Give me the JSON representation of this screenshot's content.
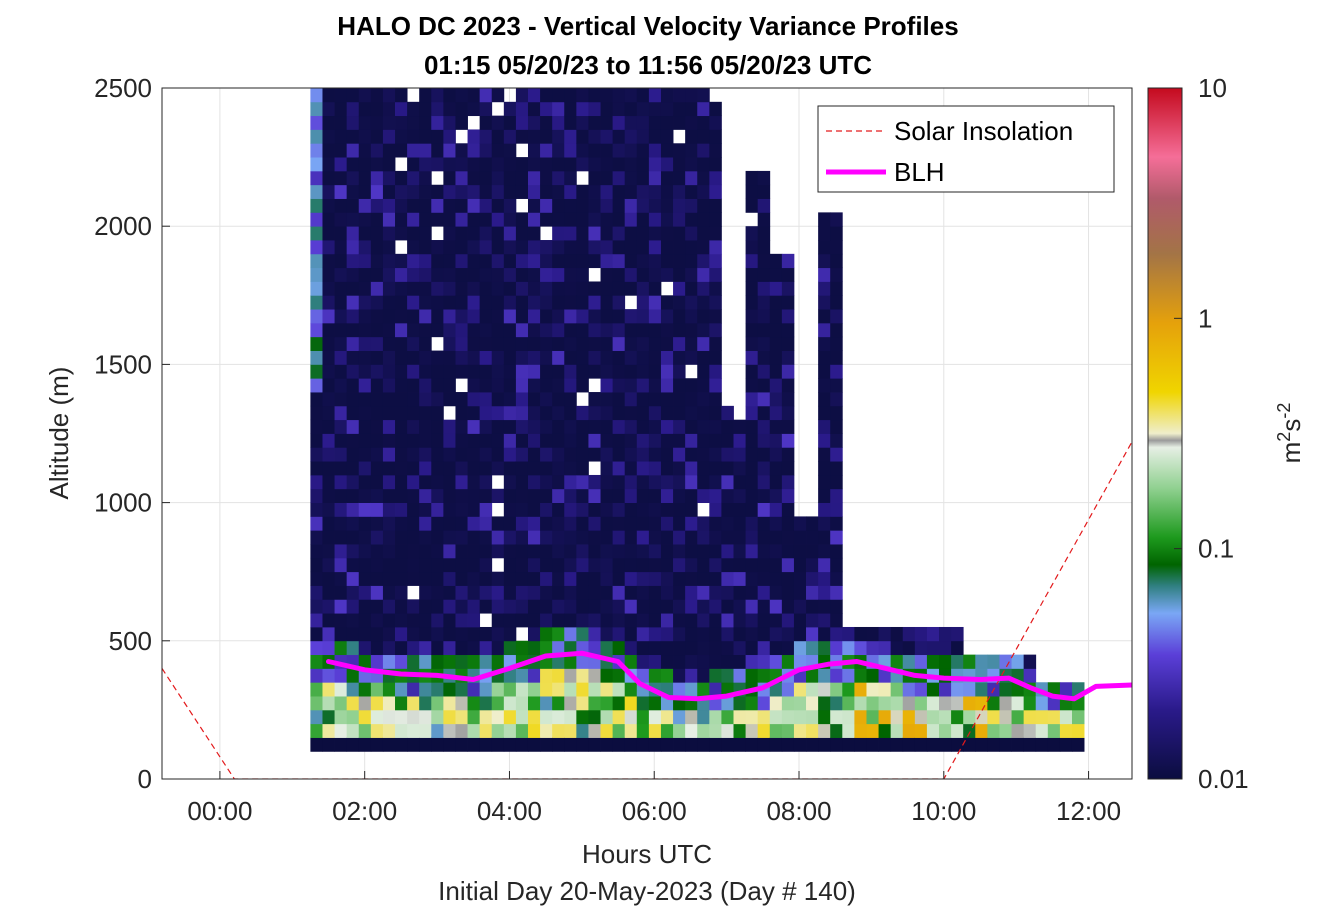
{
  "chart_data": {
    "type": "heatmap",
    "title": "HALO DC 2023 - Vertical Velocity Variance Profiles",
    "subtitle": "01:15 05/20/23 to 11:56 05/20/23  UTC",
    "xlabel": "Hours UTC",
    "xlabel2": "Initial Day 20-May-2023 (Day # 140)",
    "ylabel": "Altitude (m)",
    "xlim_hours": [
      -0.8,
      12.6
    ],
    "ylim": [
      0,
      2500
    ],
    "x_ticks": [
      {
        "value": 0,
        "label": "00:00"
      },
      {
        "value": 2,
        "label": "02:00"
      },
      {
        "value": 4,
        "label": "04:00"
      },
      {
        "value": 6,
        "label": "06:00"
      },
      {
        "value": 8,
        "label": "08:00"
      },
      {
        "value": 10,
        "label": "10:00"
      },
      {
        "value": 12,
        "label": "12:00"
      }
    ],
    "y_ticks": [
      {
        "value": 0,
        "label": "0"
      },
      {
        "value": 500,
        "label": "500"
      },
      {
        "value": 1000,
        "label": "1000"
      },
      {
        "value": 1500,
        "label": "1500"
      },
      {
        "value": 2000,
        "label": "2000"
      },
      {
        "value": 2500,
        "label": "2500"
      }
    ],
    "grid": true,
    "legend_position": "top-right",
    "legend": [
      {
        "name": "Solar Insolation",
        "style": "dashed",
        "color": "#e31a1c"
      },
      {
        "name": "BLH",
        "style": "solid",
        "color": "#ff00ff"
      }
    ],
    "colorbar": {
      "label_base": "m",
      "label_sup1": "2",
      "label_mid": "s",
      "label_sup2": "-2",
      "scale": "log",
      "range": [
        0.01,
        10
      ],
      "ticks": [
        {
          "value": 0.01,
          "label": "0.01"
        },
        {
          "value": 0.1,
          "label": "0.1"
        },
        {
          "value": 1,
          "label": "1"
        },
        {
          "value": 10,
          "label": "10"
        }
      ]
    },
    "blh": {
      "hours": [
        1.5,
        2.0,
        2.5,
        3.0,
        3.5,
        4.0,
        4.5,
        5.0,
        5.5,
        5.8,
        6.2,
        6.6,
        7.0,
        7.5,
        8.0,
        8.4,
        8.8,
        9.2,
        9.6,
        10.0,
        10.5,
        10.9,
        11.2,
        11.5,
        11.8,
        12.1,
        12.6
      ],
      "altitude": [
        425,
        395,
        380,
        375,
        360,
        400,
        445,
        455,
        425,
        345,
        295,
        290,
        300,
        330,
        395,
        415,
        425,
        400,
        375,
        365,
        360,
        365,
        330,
        300,
        290,
        335,
        340
      ]
    },
    "solar_insolation": {
      "hours": [
        -0.8,
        0.2,
        10.0,
        12.6
      ],
      "altitude": [
        400,
        0,
        0,
        1220
      ]
    },
    "variance_mesh": {
      "time_start": 1.25,
      "time_end": 11.93,
      "time_step": 0.167,
      "altitude_step": 50,
      "altitude_min": 100,
      "altitude_max": 2500,
      "value_range": [
        0.01,
        1.0
      ]
    }
  }
}
